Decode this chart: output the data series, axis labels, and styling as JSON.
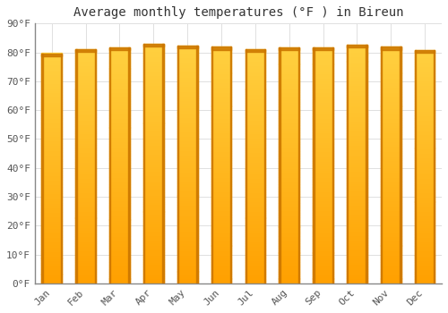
{
  "title": "Average monthly temperatures (°F ) in Bireun",
  "months": [
    "Jan",
    "Feb",
    "Mar",
    "Apr",
    "May",
    "Jun",
    "Jul",
    "Aug",
    "Sep",
    "Oct",
    "Nov",
    "Dec"
  ],
  "values": [
    79.7,
    81.1,
    81.8,
    82.9,
    82.3,
    81.9,
    81.1,
    81.7,
    81.7,
    82.7,
    81.9,
    80.8
  ],
  "ylim": [
    0,
    90
  ],
  "yticks": [
    0,
    10,
    20,
    30,
    40,
    50,
    60,
    70,
    80,
    90
  ],
  "bar_color_top": "#FFC125",
  "bar_color_bottom": "#FFA500",
  "bar_color_edge": "#CC7700",
  "background_color": "#FFFFFF",
  "plot_bg_color": "#FFFFFF",
  "grid_color": "#E0E0E0",
  "title_fontsize": 10,
  "tick_fontsize": 8,
  "font_family": "monospace",
  "bar_width": 0.6
}
